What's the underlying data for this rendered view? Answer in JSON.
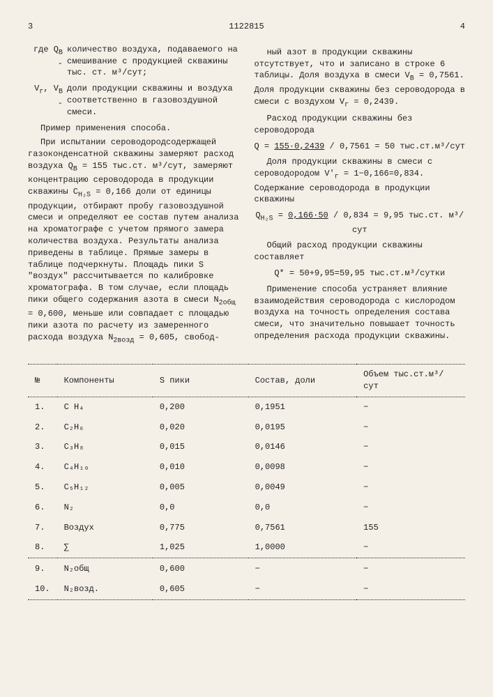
{
  "header": {
    "left_page": "3",
    "doc_no": "1122815",
    "right_page": "4"
  },
  "left": {
    "d1_sym": "где  Q<sub>В</sub> -",
    "d1_txt": "количество воздуха, подаваемого на смешивание с продукцией скважины тыс. ст. м³/сут;",
    "d2_sym": "V<sub>г</sub>, V<sub>В</sub> -",
    "d2_txt": "доли продукции скважины и воздуха соответственно в газовоздушной смеси.",
    "p1": "Пример применения способа.",
    "p2": "При испытании сероводородсодержащей газоконденсатной скважины замеряют расход воздуха Q<sub>В</sub> = 155 тыс.ст. м³/сут, замеряют концентрацию сероводорода в продукции скважины C<sub>H₂S</sub> = 0,166 доли от единицы продукции, отбирают пробу газовоздушной смеси и определяют ее состав путем анализа на хроматографе с учетом прямого замера количества воздуха. Результаты анализа приведены в таблице. Прямые замеры в таблице подчеркнуты. Площадь пики S \"воздух\" рассчитывается по калибровке хроматографа. В том случае, если площадь пики общего содержания азота в смеси N<sub>2общ</sub> = 0,600, меньше или совпадает с площадью пики азота по расчету из замеренного расхода воздуха N<sub>2возд</sub> = 0,605, свобод-"
  },
  "right": {
    "p1": "ный азот в продукции скважины отсутствует, что и записано в строке 6 таблицы. Доля воздуха в смеси V<sub>В</sub> = 0,7561. Доля продукции скважины без сероводорода в смеси с воздухом V<sub>г</sub> = 0,2439.",
    "p2": "Расход продукции скважины без сероводорода",
    "f1": "Q = <u>155·0,2439</u> / 0,7561 = 50 тыс.ст.м³/сут",
    "p3": "Доля продукции скважины в смеси с сероводородом V'<sub>г</sub> = 1−0,166=0,834. Содержание сероводорода в продукции скважины",
    "f2": "Q<sub>H₂S</sub> = <u>0,166·50</u> / 0,834 = 9,95 тыс.ст. м³/сут",
    "p4": "Общий расход продукции скважины составляет",
    "f3": "Q* = 50+9,95=59,95 тыс.ст.м³/сутки",
    "p5": "Применение способа устраняет влияние взаимодействия сероводорода с кислородом воздуха на точность определения состава смеси, что значительно повышает точность определения расхода продукции скважины."
  },
  "table": {
    "head": [
      "№",
      "Компоненты",
      "S пики",
      "Состав, доли",
      "Объем тыс.ст.м³/сут"
    ],
    "rows": [
      [
        "1.",
        "C H₄",
        "0,200",
        "0,1951",
        "−"
      ],
      [
        "2.",
        "C₂H₆",
        "0,020",
        "0,0195",
        "−"
      ],
      [
        "3.",
        "C₃H₈",
        "0,015",
        "0,0146",
        "−"
      ],
      [
        "4.",
        "C₄H₁₀",
        "0,010",
        "0,0098",
        "−"
      ],
      [
        "5.",
        "C₅H₁₂",
        "0,005",
        "0,0049",
        "−"
      ],
      [
        "6.",
        "N₂",
        "0,0",
        "0,0",
        "−"
      ],
      [
        "7.",
        "Воздух",
        "0,775",
        "0,7561",
        "155"
      ],
      [
        "8.",
        "∑",
        "1,025",
        "1,0000",
        "−"
      ],
      [
        "9.",
        "N₂общ",
        "0,600",
        "−",
        "−"
      ],
      [
        "10.",
        "N₂возд.",
        "0,605",
        "−",
        "−"
      ]
    ]
  }
}
